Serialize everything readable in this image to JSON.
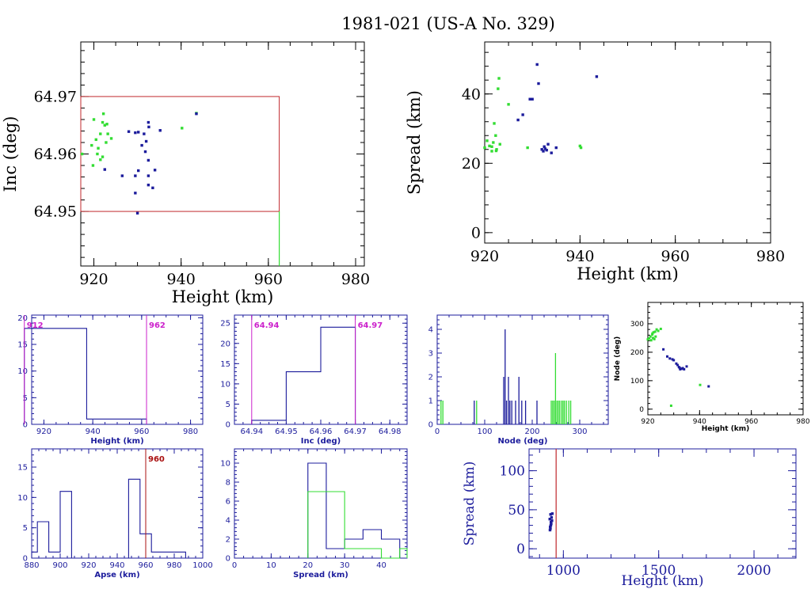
{
  "page": {
    "title": "1981-021 (US-A No. 329)"
  },
  "colors": {
    "axis": "#000000",
    "box": "#c0282d",
    "green": "#33dd33",
    "blue": "#1c1c9c",
    "hist_axis": "#1c1c9c",
    "marker_magenta": "#cc22cc",
    "marker_red": "#aa1111"
  },
  "chart_data": [
    {
      "id": "height-inc",
      "type": "scatter",
      "title": "",
      "xlabel": "Height (km)",
      "ylabel": "Inc (deg)",
      "xlim": [
        917,
        982
      ],
      "ylim": [
        64.9405,
        64.9795
      ],
      "xticks": [
        "920",
        "940",
        "960",
        "980"
      ],
      "yticks": [
        "64.95",
        "64.96",
        "64.97"
      ],
      "box": {
        "x": [
          917,
          962.5
        ],
        "y": [
          64.95,
          64.97
        ]
      },
      "vline": {
        "x": 962.5,
        "y": [
          64.9405,
          64.95
        ]
      },
      "series": [
        {
          "color": "green",
          "points": [
            [
              917.3,
              64.96
            ],
            [
              920,
              64.966
            ],
            [
              920.5,
              64.9625
            ],
            [
              921,
              64.961
            ],
            [
              921.5,
              64.9635
            ],
            [
              922,
              64.9655
            ],
            [
              922.2,
              64.967
            ],
            [
              922.5,
              64.965
            ],
            [
              923,
              64.9652
            ],
            [
              923.2,
              64.9635
            ],
            [
              921.5,
              64.959
            ],
            [
              922,
              64.9595
            ],
            [
              919.5,
              64.9615
            ],
            [
              920.8,
              64.96
            ],
            [
              919.8,
              64.958
            ],
            [
              924,
              64.9627
            ],
            [
              922.8,
              64.962
            ],
            [
              940.2,
              64.9645
            ],
            [
              943.5,
              64.9671
            ]
          ]
        },
        {
          "color": "blue",
          "points": [
            [
              922.5,
              64.9573
            ],
            [
              926.5,
              64.9562
            ],
            [
              928,
              64.9639
            ],
            [
              929.5,
              64.9532
            ],
            [
              929.5,
              64.9562
            ],
            [
              930,
              64.9497
            ],
            [
              930.2,
              64.9571
            ],
            [
              931,
              64.9615
            ],
            [
              931.5,
              64.9635
            ],
            [
              931.8,
              64.9604
            ],
            [
              932,
              64.9622
            ],
            [
              932.5,
              64.9589
            ],
            [
              932.5,
              64.9546
            ],
            [
              932.5,
              64.9655
            ],
            [
              932.6,
              64.9647
            ],
            [
              932.5,
              64.9562
            ],
            [
              933.5,
              64.9541
            ],
            [
              934,
              64.9572
            ],
            [
              935.2,
              64.9641
            ],
            [
              930.2,
              64.9638
            ],
            [
              929.5,
              64.9637
            ],
            [
              943.5,
              64.967
            ]
          ]
        }
      ]
    },
    {
      "id": "height-spread",
      "type": "scatter",
      "title": "",
      "xlabel": "Height (km)",
      "ylabel": "Spread (km)",
      "xlim": [
        920,
        980
      ],
      "ylim": [
        -3,
        55
      ],
      "xticks": [
        "920",
        "940",
        "960",
        "980"
      ],
      "yticks": [
        "0",
        "20",
        "40"
      ],
      "series": [
        {
          "color": "green",
          "points": [
            [
              920,
              24.5
            ],
            [
              920.5,
              26.5
            ],
            [
              921,
              25
            ],
            [
              921.5,
              23.5
            ],
            [
              921.8,
              26
            ],
            [
              922,
              31.5
            ],
            [
              922.3,
              28
            ],
            [
              922.5,
              24
            ],
            [
              922.8,
              41.5
            ],
            [
              923,
              44.5
            ],
            [
              923.2,
              25.5
            ],
            [
              921.5,
              24.8
            ],
            [
              925,
              37
            ],
            [
              929,
              24.5
            ],
            [
              940,
              25
            ],
            [
              940.2,
              24.5
            ],
            [
              922.4,
              23.6
            ]
          ]
        },
        {
          "color": "blue",
          "points": [
            [
              927,
              32.5
            ],
            [
              928,
              34
            ],
            [
              929.5,
              38.5
            ],
            [
              930,
              38.5
            ],
            [
              931,
              48.5
            ],
            [
              931.3,
              43
            ],
            [
              932,
              24
            ],
            [
              932.3,
              23.5
            ],
            [
              932.5,
              24.8
            ],
            [
              932.7,
              24.2
            ],
            [
              933,
              23.8
            ],
            [
              933.3,
              25.5
            ],
            [
              934,
              23
            ],
            [
              935,
              24.5
            ],
            [
              943.5,
              45
            ]
          ]
        }
      ]
    },
    {
      "id": "hist-height",
      "type": "bar",
      "title": "",
      "xlabel": "Height (km)",
      "ylabel": "",
      "xlim": [
        915,
        985
      ],
      "ylim": [
        0,
        20.5
      ],
      "xticks": [
        "920",
        "940",
        "960",
        "980"
      ],
      "yticks": [
        "0",
        "5",
        "10",
        "15",
        "20"
      ],
      "edges": [
        912,
        937.5,
        962
      ],
      "counts": [
        18,
        1
      ],
      "markers": [
        {
          "x": 912,
          "label": "912",
          "color": "marker_magenta"
        },
        {
          "x": 962,
          "label": "962",
          "color": "marker_magenta"
        }
      ]
    },
    {
      "id": "hist-inc",
      "type": "bar",
      "title": "",
      "xlabel": "Inc (deg)",
      "ylabel": "",
      "xlim": [
        64.935,
        64.985
      ],
      "ylim": [
        0,
        27
      ],
      "xticks": [
        "64.94",
        "64.95",
        "64.96",
        "64.97",
        "64.98"
      ],
      "yticks": [
        "0",
        "5",
        "10",
        "15",
        "20",
        "25"
      ],
      "edges": [
        64.94,
        64.95,
        64.96,
        64.97
      ],
      "counts": [
        1,
        13,
        24
      ],
      "markers": [
        {
          "x": 64.94,
          "label": "64.94",
          "color": "marker_magenta"
        },
        {
          "x": 64.97,
          "label": "64.97",
          "color": "marker_magenta"
        }
      ]
    },
    {
      "id": "hist-node",
      "type": "bar",
      "title": "",
      "xlabel": "Node (deg)",
      "ylabel": "",
      "xlim": [
        0,
        360
      ],
      "ylim": [
        0,
        4.6
      ],
      "xticks": [
        "0",
        "100",
        "200",
        "300"
      ],
      "yticks": [
        "0",
        "1",
        "2",
        "3",
        "4"
      ],
      "spikes": [
        {
          "x": 8,
          "h": 1,
          "color": "green"
        },
        {
          "x": 12,
          "h": 1,
          "color": "green"
        },
        {
          "x": 78,
          "h": 1,
          "color": "blue"
        },
        {
          "x": 83,
          "h": 1,
          "color": "green"
        },
        {
          "x": 140,
          "h": 2,
          "color": "blue"
        },
        {
          "x": 143,
          "h": 4,
          "color": "blue"
        },
        {
          "x": 146,
          "h": 1,
          "color": "blue"
        },
        {
          "x": 150,
          "h": 2,
          "color": "blue"
        },
        {
          "x": 153,
          "h": 1,
          "color": "blue"
        },
        {
          "x": 157,
          "h": 1,
          "color": "blue"
        },
        {
          "x": 165,
          "h": 1,
          "color": "blue"
        },
        {
          "x": 172,
          "h": 2,
          "color": "blue"
        },
        {
          "x": 178,
          "h": 1,
          "color": "blue"
        },
        {
          "x": 186,
          "h": 1,
          "color": "blue"
        },
        {
          "x": 210,
          "h": 1,
          "color": "blue"
        },
        {
          "x": 240,
          "h": 1,
          "color": "green"
        },
        {
          "x": 243,
          "h": 1,
          "color": "green"
        },
        {
          "x": 246,
          "h": 1,
          "color": "green"
        },
        {
          "x": 249,
          "h": 3,
          "color": "green"
        },
        {
          "x": 252,
          "h": 1,
          "color": "green"
        },
        {
          "x": 255,
          "h": 1,
          "color": "green"
        },
        {
          "x": 258,
          "h": 1,
          "color": "green"
        },
        {
          "x": 262,
          "h": 1,
          "color": "green"
        },
        {
          "x": 265,
          "h": 1,
          "color": "green"
        },
        {
          "x": 268,
          "h": 1,
          "color": "green"
        },
        {
          "x": 272,
          "h": 1,
          "color": "green"
        },
        {
          "x": 277,
          "h": 1,
          "color": "green"
        },
        {
          "x": 281,
          "h": 1,
          "color": "green"
        }
      ]
    },
    {
      "id": "height-node",
      "type": "scatter",
      "title": "",
      "xlabel": "Height (km)",
      "ylabel": "Node (deg)",
      "xlim": [
        920,
        980
      ],
      "ylim": [
        -20,
        375
      ],
      "xticks": [
        "920",
        "940",
        "960",
        "980"
      ],
      "yticks": [
        "0",
        "100",
        "200",
        "300"
      ],
      "series": [
        {
          "color": "green",
          "points": [
            [
              920,
              245
            ],
            [
              920.5,
              248
            ],
            [
              921,
              255
            ],
            [
              921.3,
              242
            ],
            [
              921.7,
              262
            ],
            [
              922,
              250
            ],
            [
              922.2,
              270
            ],
            [
              922.5,
              246
            ],
            [
              922.8,
              272
            ],
            [
              923,
              255
            ],
            [
              923.4,
              280
            ],
            [
              924,
              275
            ],
            [
              925,
              282
            ],
            [
              921.8,
              266
            ],
            [
              929,
              12
            ],
            [
              940.2,
              85
            ]
          ]
        },
        {
          "color": "blue",
          "points": [
            [
              926,
              210
            ],
            [
              927.5,
              185
            ],
            [
              928.5,
              178
            ],
            [
              929.5,
              175
            ],
            [
              930,
              172
            ],
            [
              931,
              160
            ],
            [
              931.5,
              155
            ],
            [
              932,
              148
            ],
            [
              932.3,
              145
            ],
            [
              932.5,
              140
            ],
            [
              933,
              142
            ],
            [
              933.5,
              144
            ],
            [
              934,
              140
            ],
            [
              935,
              150
            ],
            [
              943.5,
              80
            ]
          ]
        }
      ]
    },
    {
      "id": "hist-apse",
      "type": "bar",
      "title": "",
      "xlabel": "Apse (km)",
      "ylabel": "",
      "xlim": [
        880,
        1000
      ],
      "ylim": [
        0,
        18
      ],
      "xticks": [
        "880",
        "900",
        "920",
        "940",
        "960",
        "980",
        "1000"
      ],
      "yticks": [
        "0",
        "5",
        "10",
        "15"
      ],
      "edges": [
        880,
        884,
        892,
        900,
        908,
        916,
        924,
        932,
        940,
        948,
        956,
        964,
        972,
        980,
        988,
        996
      ],
      "counts": [
        1,
        6,
        1,
        11,
        0,
        0,
        0,
        0,
        0,
        13,
        4,
        1,
        1,
        1,
        0
      ],
      "markers": [
        {
          "x": 960,
          "label": "960",
          "color": "marker_red"
        }
      ]
    },
    {
      "id": "hist-spread",
      "type": "bar",
      "title": "",
      "xlabel": "Spread (km)",
      "ylabel": "",
      "xlim": [
        0,
        47
      ],
      "ylim": [
        0,
        11.5
      ],
      "xticks": [
        "0",
        "10",
        "20",
        "30",
        "40"
      ],
      "yticks": [
        "0",
        "2",
        "4",
        "6",
        "8",
        "10"
      ],
      "series": [
        {
          "color": "blue",
          "edges": [
            20,
            25,
            30,
            35,
            40,
            45
          ],
          "counts": [
            10,
            1,
            2,
            3,
            2
          ]
        },
        {
          "color": "green",
          "edges": [
            20,
            25,
            30,
            35,
            40,
            45,
            47
          ],
          "counts": [
            7,
            7,
            1,
            1,
            0,
            1
          ]
        }
      ]
    },
    {
      "id": "height-spread-wide",
      "type": "scatter",
      "title": "",
      "xlabel": "Height (km)",
      "ylabel": "Spread (km)",
      "xlim": [
        820,
        2220
      ],
      "ylim": [
        -12,
        128
      ],
      "xticks": [
        "1000",
        "1500",
        "2000"
      ],
      "yticks": [
        "0",
        "50",
        "100"
      ],
      "vline": {
        "x": 962,
        "y": [
          -12,
          128
        ]
      },
      "series": [
        {
          "color": "blue",
          "points": [
            [
              930,
              24
            ],
            [
              932,
              26
            ],
            [
              934,
              30
            ],
            [
              936,
              32
            ],
            [
              940,
              36
            ],
            [
              933,
              44
            ],
            [
              938,
              40
            ],
            [
              942,
              45
            ],
            [
              931,
              28
            ],
            [
              935,
              34
            ],
            [
              929,
              38
            ]
          ]
        }
      ]
    }
  ]
}
